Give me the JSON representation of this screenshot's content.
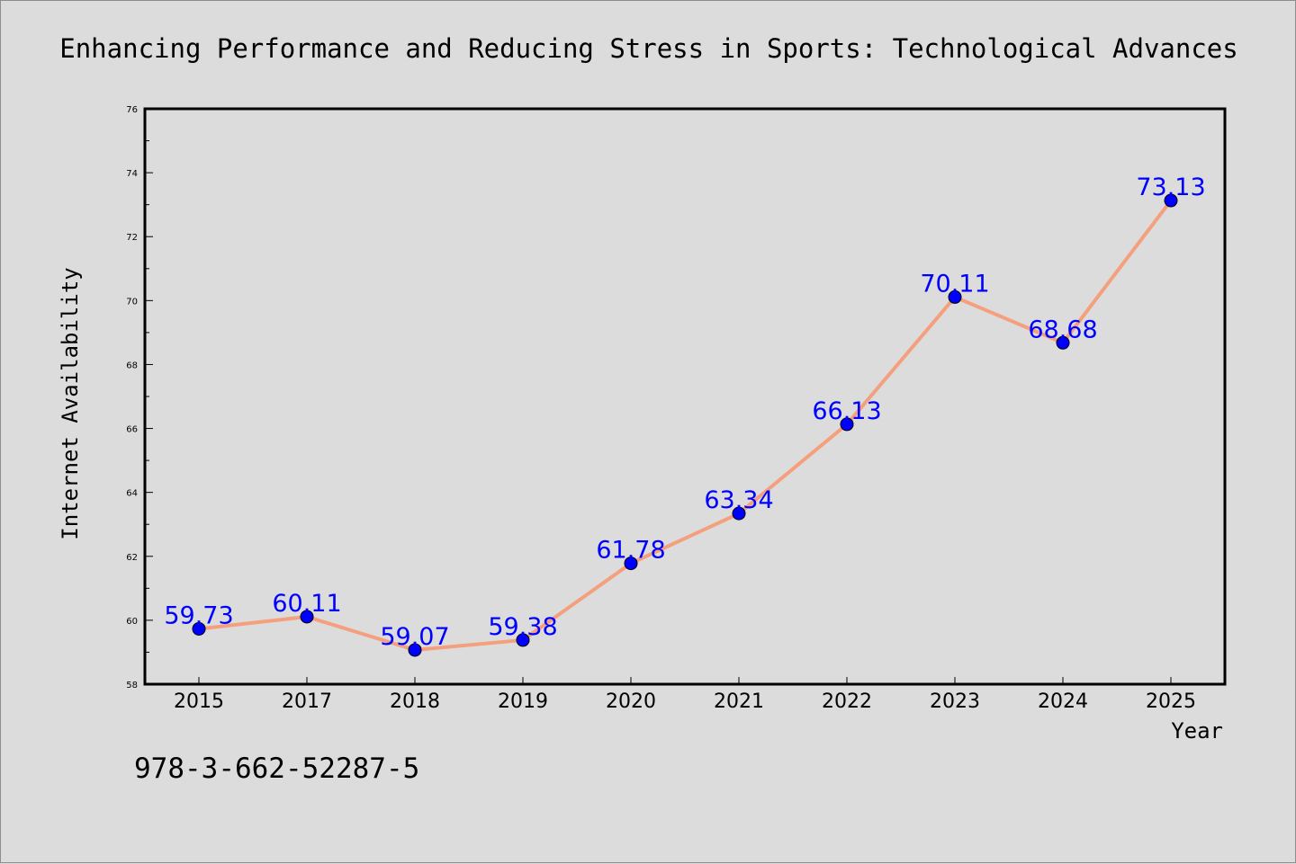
{
  "chart_data": {
    "type": "line",
    "title": "Enhancing Performance and Reducing Stress in Sports: Technological Advances",
    "xlabel": "Year",
    "ylabel": "Internet Availability",
    "categories": [
      "2015",
      "2017",
      "2018",
      "2019",
      "2020",
      "2021",
      "2022",
      "2023",
      "2024",
      "2025"
    ],
    "values": [
      59.73,
      60.11,
      59.07,
      59.38,
      61.78,
      63.34,
      66.13,
      70.11,
      68.68,
      73.13
    ],
    "ylim": [
      58,
      76
    ],
    "yticks": [
      "58",
      "60",
      "62",
      "64",
      "66",
      "68",
      "70",
      "72",
      "74",
      "76"
    ],
    "data_labels": [
      "59.73",
      "60.11",
      "59.07",
      "59.38",
      "61.78",
      "63.34",
      "66.13",
      "70.11",
      "68.68",
      "73.13"
    ],
    "grid": false,
    "line_color": "#f4a07e",
    "marker_color": "#0000ff",
    "label_color": "#0000ff"
  },
  "annotation": "978-3-662-52287-5"
}
